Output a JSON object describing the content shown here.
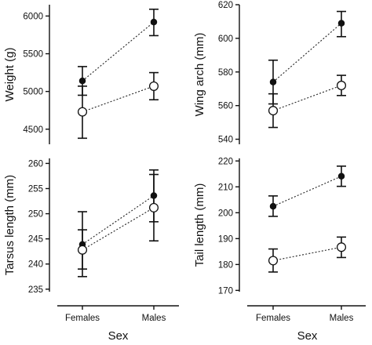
{
  "chart_data": [
    {
      "type": "scatter",
      "ylabel": "Weight (g)",
      "xlabel": "",
      "categories": [
        "Females",
        "Males"
      ],
      "show_x_ticklabels": false,
      "ylim": [
        4300,
        6150
      ],
      "yticks": [
        4500,
        5000,
        5500,
        6000
      ],
      "series": [
        {
          "marker": "filled",
          "values": [
            5140,
            5920
          ],
          "err_low": [
            4950,
            5740
          ],
          "err_high": [
            5330,
            6090
          ]
        },
        {
          "marker": "open",
          "values": [
            4730,
            5070
          ],
          "err_low": [
            4380,
            4890
          ],
          "err_high": [
            5070,
            5250
          ]
        }
      ]
    },
    {
      "type": "scatter",
      "ylabel": "Wing arch (mm)",
      "xlabel": "",
      "categories": [
        "Females",
        "Males"
      ],
      "show_x_ticklabels": false,
      "ylim": [
        537,
        620
      ],
      "yticks": [
        540,
        560,
        580,
        600,
        620
      ],
      "series": [
        {
          "marker": "filled",
          "values": [
            574,
            609
          ],
          "err_low": [
            561,
            601
          ],
          "err_high": [
            587,
            616
          ]
        },
        {
          "marker": "open",
          "values": [
            557,
            572
          ],
          "err_low": [
            547,
            566
          ],
          "err_high": [
            567,
            578
          ]
        }
      ]
    },
    {
      "type": "scatter",
      "ylabel": "Tarsus length (mm)",
      "xlabel": "Sex",
      "categories": [
        "Females",
        "Males"
      ],
      "show_x_ticklabels": true,
      "ylim": [
        234.5,
        261
      ],
      "yticks": [
        235,
        240,
        245,
        250,
        255,
        260
      ],
      "series": [
        {
          "marker": "filled",
          "values": [
            243.9,
            253.6
          ],
          "err_low": [
            237.5,
            248.4
          ],
          "err_high": [
            250.4,
            258.7
          ]
        },
        {
          "marker": "open",
          "values": [
            242.8,
            251.2
          ],
          "err_low": [
            239.0,
            244.6
          ],
          "err_high": [
            246.8,
            257.8
          ]
        }
      ]
    },
    {
      "type": "scatter",
      "ylabel": "Tail length (mm)",
      "xlabel": "Sex",
      "categories": [
        "Females",
        "Males"
      ],
      "show_x_ticklabels": true,
      "ylim": [
        169.5,
        221
      ],
      "yticks": [
        170,
        180,
        190,
        200,
        210,
        220
      ],
      "series": [
        {
          "marker": "filled",
          "values": [
            202.5,
            214.1
          ],
          "err_low": [
            198.6,
            210.2
          ],
          "err_high": [
            206.5,
            218.0
          ]
        },
        {
          "marker": "open",
          "values": [
            181.5,
            186.7
          ],
          "err_low": [
            177.1,
            182.7
          ],
          "err_high": [
            186.0,
            190.6
          ]
        }
      ]
    }
  ]
}
